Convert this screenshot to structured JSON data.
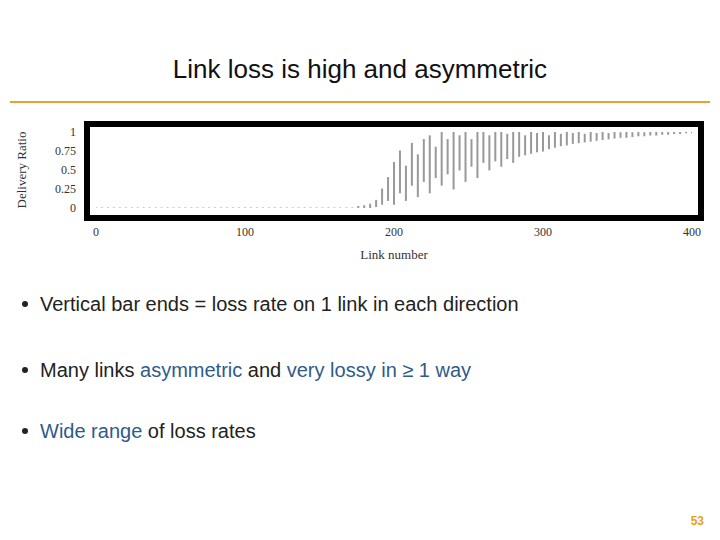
{
  "chart_data": {
    "type": "range",
    "title": "Link loss is high and asymmetric",
    "x_label": "Link number",
    "y_label": "Delivery Ratio",
    "color": "#999999",
    "grid": false,
    "xlim": [
      0,
      400
    ],
    "xticks": [
      0,
      100,
      200,
      300,
      400
    ],
    "ylim": [
      0,
      1
    ],
    "yticks": [
      0,
      0.25,
      0.5,
      0.75,
      1
    ],
    "x": [
      0,
      4,
      8,
      12,
      16,
      20,
      24,
      28,
      32,
      36,
      40,
      44,
      48,
      52,
      56,
      60,
      64,
      68,
      72,
      76,
      80,
      84,
      88,
      92,
      96,
      100,
      104,
      108,
      112,
      116,
      120,
      124,
      128,
      132,
      136,
      140,
      144,
      148,
      152,
      156,
      160,
      164,
      168,
      172,
      176,
      180,
      184,
      188,
      192,
      196,
      200,
      204,
      208,
      212,
      216,
      220,
      224,
      228,
      232,
      236,
      240,
      244,
      248,
      252,
      256,
      260,
      264,
      268,
      272,
      276,
      280,
      284,
      288,
      292,
      296,
      300,
      304,
      308,
      312,
      316,
      320,
      324,
      328,
      332,
      336,
      340,
      344,
      348,
      352,
      356,
      360,
      364,
      368,
      372,
      376,
      380,
      384,
      388,
      392,
      396,
      400
    ],
    "values": [
      [
        0,
        0
      ],
      [
        0,
        0
      ],
      [
        0,
        0
      ],
      [
        0,
        0
      ],
      [
        0,
        0
      ],
      [
        0,
        0
      ],
      [
        0,
        0
      ],
      [
        0,
        0
      ],
      [
        0,
        0
      ],
      [
        0,
        0
      ],
      [
        0,
        0
      ],
      [
        0,
        0
      ],
      [
        0,
        0
      ],
      [
        0,
        0
      ],
      [
        0,
        0
      ],
      [
        0,
        0
      ],
      [
        0,
        0
      ],
      [
        0,
        0
      ],
      [
        0,
        0
      ],
      [
        0,
        0
      ],
      [
        0,
        0
      ],
      [
        0,
        0
      ],
      [
        0,
        0
      ],
      [
        0,
        0
      ],
      [
        0,
        0
      ],
      [
        0,
        0
      ],
      [
        0,
        0
      ],
      [
        0,
        0
      ],
      [
        0,
        0
      ],
      [
        0,
        0
      ],
      [
        0,
        0
      ],
      [
        0,
        0
      ],
      [
        0,
        0
      ],
      [
        0,
        0
      ],
      [
        0,
        0
      ],
      [
        0,
        0
      ],
      [
        0,
        0
      ],
      [
        0,
        0
      ],
      [
        0,
        0
      ],
      [
        0,
        0
      ],
      [
        0,
        0
      ],
      [
        0,
        0
      ],
      [
        0,
        0
      ],
      [
        0,
        0
      ],
      [
        0,
        0.02
      ],
      [
        0,
        0.03
      ],
      [
        0,
        0.05
      ],
      [
        0.02,
        0.1
      ],
      [
        0.05,
        0.25
      ],
      [
        0.1,
        0.4
      ],
      [
        0.05,
        0.6
      ],
      [
        0.2,
        0.75
      ],
      [
        0.1,
        0.55
      ],
      [
        0.3,
        0.85
      ],
      [
        0.15,
        0.7
      ],
      [
        0.35,
        0.9
      ],
      [
        0.2,
        0.95
      ],
      [
        0.4,
        0.8
      ],
      [
        0.3,
        1
      ],
      [
        0.45,
        0.9
      ],
      [
        0.25,
        1
      ],
      [
        0.5,
        0.95
      ],
      [
        0.35,
        1
      ],
      [
        0.55,
        0.9
      ],
      [
        0.4,
        1
      ],
      [
        0.6,
        1
      ],
      [
        0.5,
        0.95
      ],
      [
        0.62,
        1
      ],
      [
        0.55,
        1
      ],
      [
        0.65,
        0.97
      ],
      [
        0.6,
        1
      ],
      [
        0.68,
        1
      ],
      [
        0.7,
        0.95
      ],
      [
        0.72,
        1
      ],
      [
        0.74,
        0.98
      ],
      [
        0.75,
        1
      ],
      [
        0.78,
        0.95
      ],
      [
        0.8,
        1
      ],
      [
        0.82,
        0.97
      ],
      [
        0.83,
        1
      ],
      [
        0.85,
        0.98
      ],
      [
        0.86,
        1
      ],
      [
        0.87,
        0.97
      ],
      [
        0.88,
        1
      ],
      [
        0.89,
        0.98
      ],
      [
        0.9,
        1
      ],
      [
        0.91,
        0.98
      ],
      [
        0.92,
        1
      ],
      [
        0.93,
        0.99
      ],
      [
        0.93,
        1
      ],
      [
        0.94,
        0.99
      ],
      [
        0.95,
        1
      ],
      [
        0.95,
        0.99
      ],
      [
        0.96,
        1
      ],
      [
        0.96,
        1
      ],
      [
        0.97,
        1
      ],
      [
        0.97,
        1
      ],
      [
        0.98,
        1
      ],
      [
        0.98,
        1
      ],
      [
        0.99,
        1
      ],
      [
        0.99,
        1
      ]
    ]
  },
  "bullets": [
    [
      {
        "text": "Vertical bar ends = loss rate on 1 link in each direction"
      }
    ],
    [
      {
        "text": "Many links "
      },
      {
        "text": "asymmetric",
        "color": "#2e5b8a"
      },
      {
        "text": " and "
      },
      {
        "text": "very lossy in ≥ 1 way",
        "color": "#2e5b8a"
      }
    ],
    [
      {
        "text": "Wide range",
        "color": "#2e5b8a"
      },
      {
        "text": " of loss rates"
      }
    ]
  ],
  "page_number": 53
}
